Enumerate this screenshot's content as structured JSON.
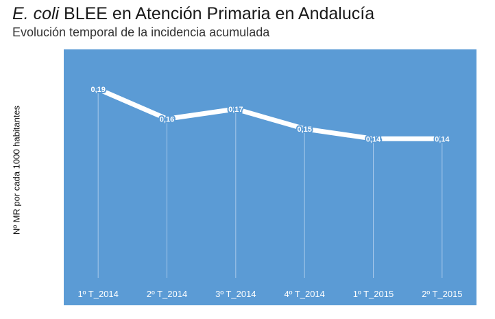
{
  "header": {
    "title_italic": "E. coli",
    "title_rest": " BLEE en Atención Primaria en Andalucía",
    "subtitle": "Evolución temporal de la incidencia acumulada"
  },
  "colors": {
    "plot_background": "#5b9bd5",
    "line": "#ffffff",
    "drop_lines": "#a9c9ea",
    "label_text": "#ffffff"
  },
  "chart_data": {
    "type": "line",
    "title": "E. coli BLEE en Atención Primaria en Andalucía",
    "subtitle": "Evolución temporal de la incidencia acumulada",
    "xlabel": "",
    "ylabel": "Nº MR por cada 1000 habitantes",
    "categories": [
      "1º T_2014",
      "2º T_2014",
      "3º T_2014",
      "4º T_2014",
      "1º T_2015",
      "2º T_2015"
    ],
    "values": [
      0.19,
      0.16,
      0.17,
      0.15,
      0.14,
      0.14
    ],
    "value_labels": [
      "0,19",
      "0,16",
      "0,17",
      "0,15",
      "0,14",
      "0,14"
    ],
    "ylim": [
      0,
      0.23
    ],
    "grid": false,
    "drop_lines": true,
    "legend": "none"
  }
}
